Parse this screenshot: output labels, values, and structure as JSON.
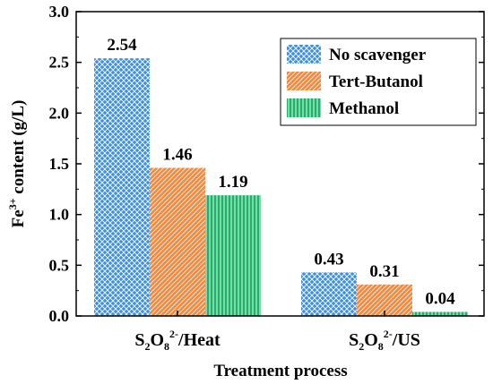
{
  "chart_data": {
    "type": "bar",
    "categories": [
      {
        "base": "S",
        "sub1": "2",
        "mid": "O",
        "sub2": "8",
        "sup": "2-",
        "tail": "/Heat"
      },
      {
        "base": "S",
        "sub1": "2",
        "mid": "O",
        "sub2": "8",
        "sup": "2-",
        "tail": "/US"
      }
    ],
    "series": [
      {
        "name": "No scavenger",
        "values": [
          2.54,
          0.43
        ],
        "color": "#3d8fe6",
        "pattern": "crosshatch"
      },
      {
        "name": "Tert-Butanol",
        "values": [
          1.46,
          0.31
        ],
        "color": "#f5863a",
        "pattern": "diagonal"
      },
      {
        "name": "Methanol",
        "values": [
          1.19,
          0.04
        ],
        "color": "#1bb56a",
        "pattern": "vertical"
      }
    ],
    "data_labels": [
      [
        "2.54",
        "0.43"
      ],
      [
        "1.46",
        "0.31"
      ],
      [
        "1.19",
        "0.04"
      ]
    ],
    "ylim": [
      0,
      3.0
    ],
    "yticks": [
      "0.0",
      "0.5",
      "1.0",
      "1.5",
      "2.0",
      "2.5",
      "3.0"
    ],
    "ylabel": {
      "base": "Fe",
      "sup": "3+",
      "rest": " content (g/L)"
    },
    "xlabel": "Treatment process",
    "legend_position": "top-right",
    "grid": false
  }
}
